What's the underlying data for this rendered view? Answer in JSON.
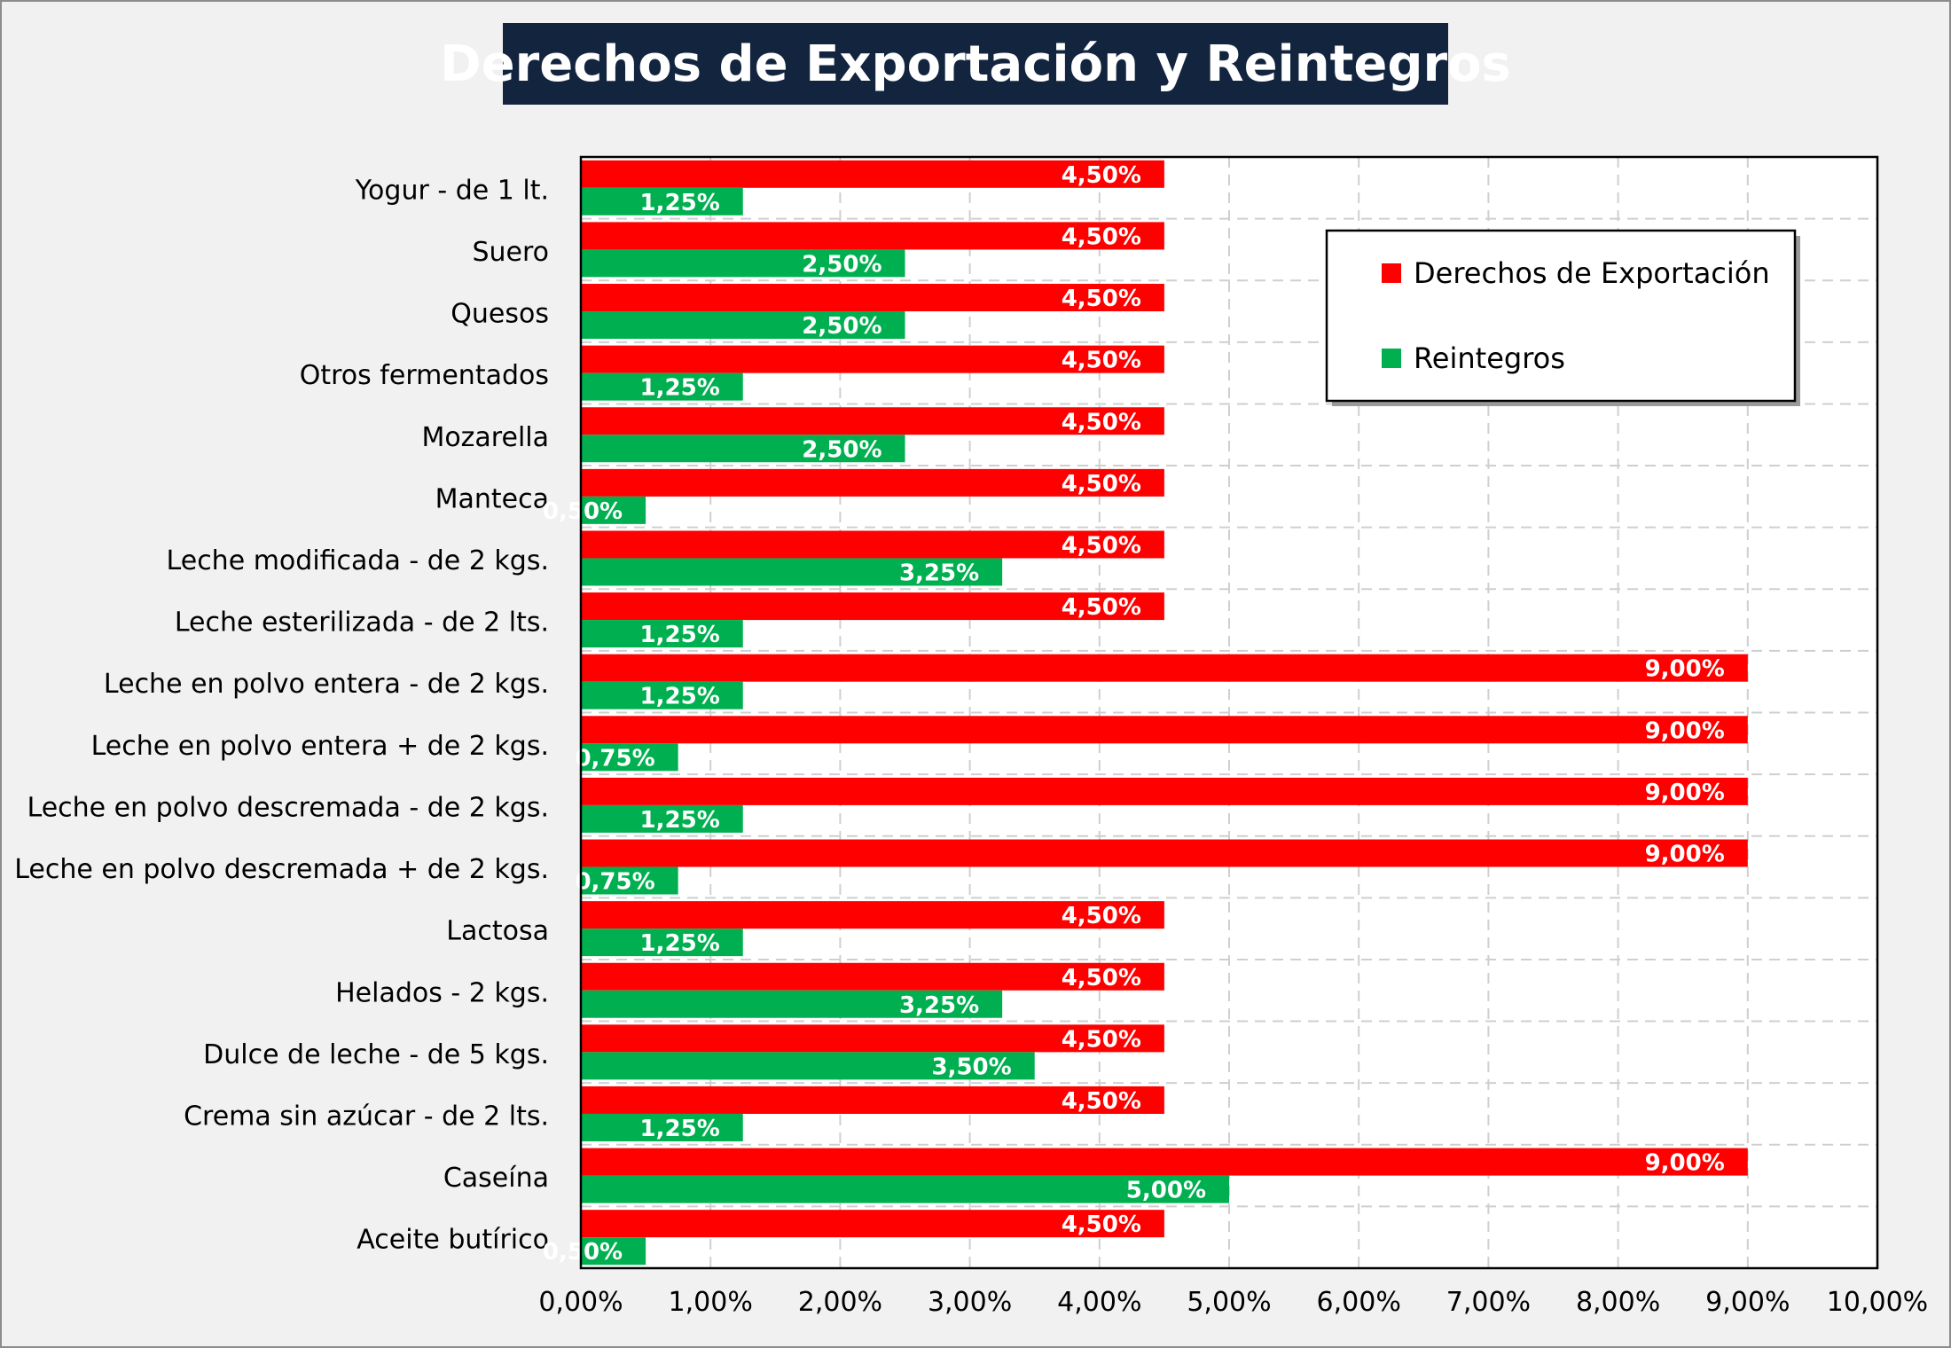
{
  "chart_data": {
    "type": "bar",
    "orientation": "horizontal",
    "title": "Derechos de Exportación y Reintegros",
    "categories": [
      "Yogur - de 1 lt.",
      "Suero",
      "Quesos",
      "Otros fermentados",
      "Mozarella",
      "Manteca",
      "Leche modificada - de 2 kgs.",
      "Leche esterilizada - de 2 lts.",
      "Leche en polvo entera - de 2 kgs.",
      "Leche en polvo entera + de 2 kgs.",
      "Leche en polvo descremada - de 2 kgs.",
      "Leche en polvo descremada + de 2 kgs.",
      "Lactosa",
      "Helados  - 2 kgs.",
      "Dulce de leche - de 5 kgs.",
      "Crema sin azúcar - de 2 lts.",
      "Caseína",
      "Aceite butírico"
    ],
    "series": [
      {
        "name": "Derechos de Exportación",
        "color": "#ff0000",
        "values": [
          4.5,
          4.5,
          4.5,
          4.5,
          4.5,
          4.5,
          4.5,
          4.5,
          9.0,
          9.0,
          9.0,
          9.0,
          4.5,
          4.5,
          4.5,
          4.5,
          9.0,
          4.5
        ],
        "labels": [
          "4,50%",
          "4,50%",
          "4,50%",
          "4,50%",
          "4,50%",
          "4,50%",
          "4,50%",
          "4,50%",
          "9,00%",
          "9,00%",
          "9,00%",
          "9,00%",
          "4,50%",
          "4,50%",
          "4,50%",
          "4,50%",
          "9,00%",
          "4,50%"
        ]
      },
      {
        "name": "Reintegros",
        "color": "#00b050",
        "values": [
          1.25,
          2.5,
          2.5,
          1.25,
          2.5,
          0.5,
          3.25,
          1.25,
          1.25,
          0.75,
          1.25,
          0.75,
          1.25,
          3.25,
          3.5,
          1.25,
          5.0,
          0.5
        ],
        "labels": [
          "1,25%",
          "2,50%",
          "2,50%",
          "1,25%",
          "2,50%",
          "0,50%",
          "3,25%",
          "1,25%",
          "1,25%",
          "0,75%",
          "1,25%",
          "0,75%",
          "1,25%",
          "3,25%",
          "3,50%",
          "1,25%",
          "5,00%",
          "0,50%"
        ]
      }
    ],
    "xlim": [
      0,
      10
    ],
    "xticks": [
      "0,00%",
      "1,00%",
      "2,00%",
      "3,00%",
      "4,00%",
      "5,00%",
      "6,00%",
      "7,00%",
      "8,00%",
      "9,00%",
      "10,00%"
    ],
    "xlabel": "",
    "ylabel": "",
    "grid": true,
    "legend_position": "top-right"
  }
}
